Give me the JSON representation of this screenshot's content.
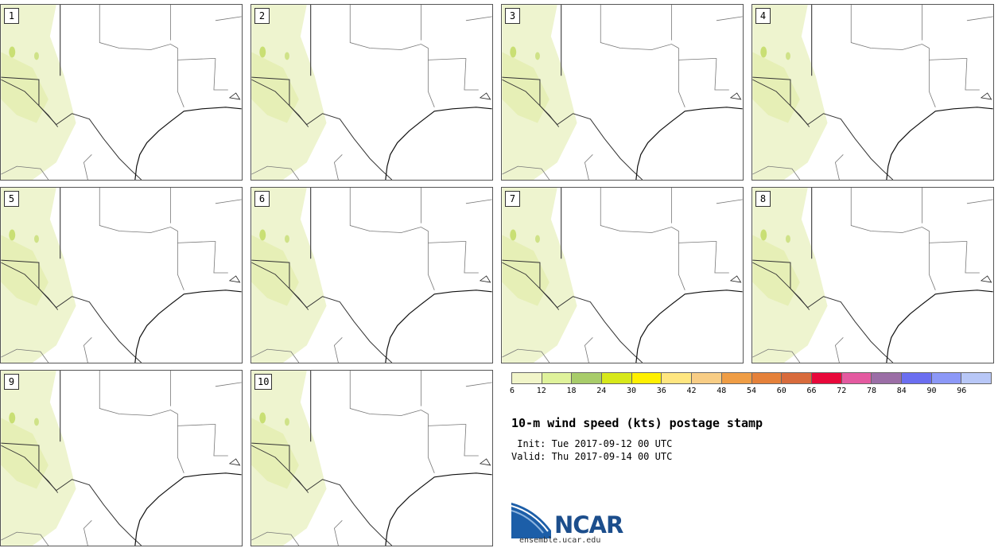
{
  "panels": [
    {
      "label": "1"
    },
    {
      "label": "2"
    },
    {
      "label": "3"
    },
    {
      "label": "4"
    },
    {
      "label": "5"
    },
    {
      "label": "6"
    },
    {
      "label": "7"
    },
    {
      "label": "8"
    },
    {
      "label": "9"
    },
    {
      "label": "10"
    }
  ],
  "legend": {
    "colors": [
      "#f1f5c9",
      "#dff29b",
      "#a8cc6a",
      "#d7e81a",
      "#fff000",
      "#ffe680",
      "#f8cd85",
      "#ef9d45",
      "#e5813a",
      "#d86b3c",
      "#e8083a",
      "#e45aa0",
      "#9b6ea6",
      "#6b6ef0",
      "#8c98f7",
      "#b8c7f7"
    ],
    "ticks": [
      "6",
      "12",
      "18",
      "24",
      "30",
      "36",
      "42",
      "48",
      "54",
      "60",
      "66",
      "72",
      "78",
      "84",
      "90",
      "96"
    ]
  },
  "title": "10-m wind speed (kts) postage stamp",
  "init": " Init: Tue 2017-09-12 00 UTC",
  "valid": "Valid: Thu 2017-09-14 00 UTC",
  "logo": {
    "text": "NCAR",
    "url": "ensemble.ucar.edu"
  }
}
